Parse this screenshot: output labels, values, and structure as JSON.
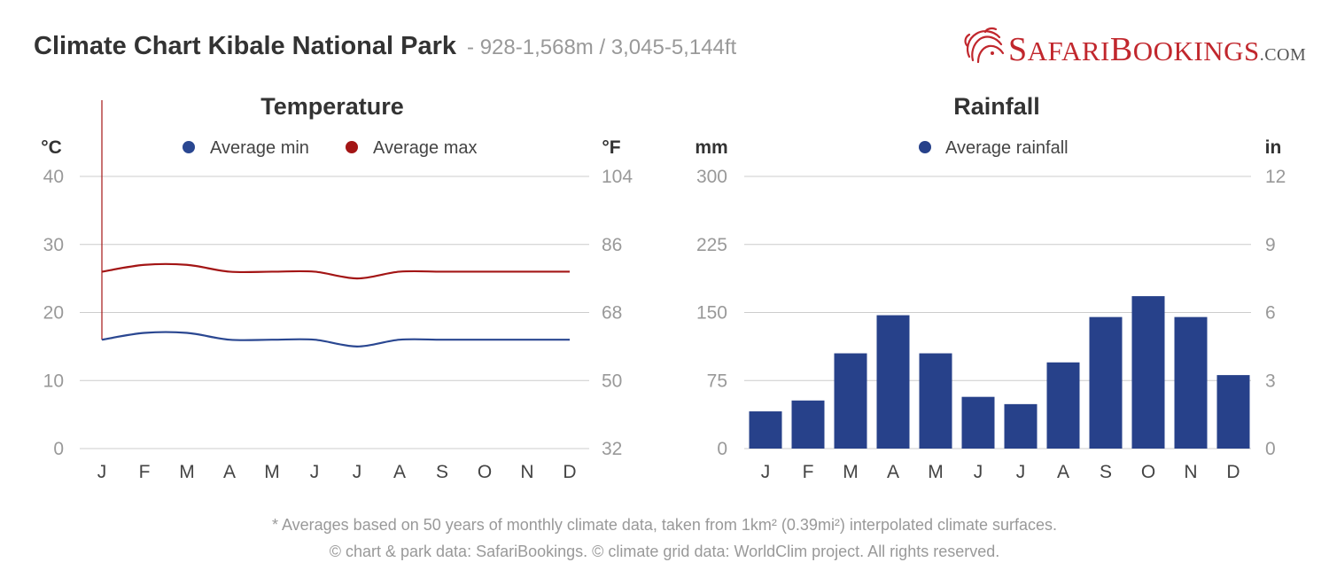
{
  "header": {
    "title": "Climate Chart Kibale National Park",
    "subtitle": "- 928-1,568m / 3,045-5,144ft"
  },
  "logo": {
    "first": "S",
    "word1": "AFARI",
    "initial2": "B",
    "word2": "OOKINGS",
    "suffix": ".COM",
    "icon": "lion-icon"
  },
  "footer": {
    "note": "* Averages based on 50 years of monthly climate data, taken from 1km² (0.39mi²) interpolated climate surfaces.",
    "credits": "© chart & park data: SafariBookings. © climate grid data: WorldClim project. All rights reserved."
  },
  "colors": {
    "min": "#2a4791",
    "max": "#a31515",
    "bar": "#27418a",
    "grid": "#cccccc",
    "tick": "#999999",
    "label": "#444444"
  },
  "chart_data": [
    {
      "type": "line",
      "title": "Temperature",
      "ylabel": "°C",
      "ylabel_right": "°F",
      "categories": [
        "J",
        "F",
        "M",
        "A",
        "M",
        "J",
        "J",
        "A",
        "S",
        "O",
        "N",
        "D"
      ],
      "ylim": [
        0,
        40
      ],
      "yticks": [
        0,
        10,
        20,
        30,
        40
      ],
      "yticks_right": [
        32,
        50,
        68,
        86,
        104
      ],
      "legend": "top-center",
      "grid": true,
      "series": [
        {
          "name": "Average min",
          "values": [
            16,
            17,
            17,
            16,
            16,
            16,
            15,
            16,
            16,
            16,
            16,
            16
          ]
        },
        {
          "name": "Average max",
          "values": [
            26,
            27,
            27,
            26,
            26,
            26,
            25,
            26,
            26,
            26,
            26,
            26
          ]
        }
      ]
    },
    {
      "type": "bar",
      "title": "Rainfall",
      "ylabel": "mm",
      "ylabel_right": "in",
      "categories": [
        "J",
        "F",
        "M",
        "A",
        "M",
        "J",
        "J",
        "A",
        "S",
        "O",
        "N",
        "D"
      ],
      "ylim": [
        0,
        300
      ],
      "yticks": [
        0,
        75,
        150,
        225,
        300
      ],
      "yticks_right": [
        0,
        3,
        6,
        9,
        12
      ],
      "legend": "top-center",
      "grid": true,
      "series": [
        {
          "name": "Average rainfall",
          "values": [
            41,
            53,
            105,
            147,
            105,
            57,
            49,
            95,
            145,
            168,
            145,
            81
          ]
        }
      ]
    }
  ]
}
